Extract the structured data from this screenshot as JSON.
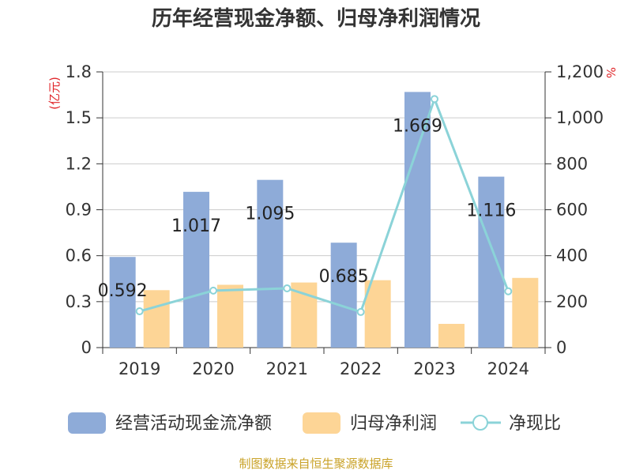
{
  "chart_data": {
    "type": "bar",
    "title": "历年经营现金净额、归母净利润情况",
    "categories": [
      "2019",
      "2020",
      "2021",
      "2022",
      "2023",
      "2024"
    ],
    "left_axis": {
      "unit": "(亿元)",
      "ylim": [
        0,
        1.8
      ],
      "ticks": [
        "0",
        "0.3",
        "0.6",
        "0.9",
        "1.2",
        "1.5",
        "1.8"
      ]
    },
    "right_axis": {
      "unit": "%",
      "ylim": [
        0,
        1200
      ],
      "ticks": [
        "0",
        "200",
        "400",
        "600",
        "800",
        "1,000",
        "1,200"
      ]
    },
    "series": [
      {
        "name": "经营活动现金流净额",
        "kind": "bar",
        "axis": "left",
        "color": "#8eabd8",
        "values": [
          0.592,
          1.017,
          1.095,
          0.685,
          1.669,
          1.116
        ],
        "labels": [
          "0.592",
          "1.017",
          "1.095",
          "0.685",
          "1.669",
          "1.116"
        ]
      },
      {
        "name": "归母净利润",
        "kind": "bar",
        "axis": "left",
        "color": "#fdd596",
        "values": [
          0.375,
          0.41,
          0.425,
          0.44,
          0.155,
          0.455
        ]
      },
      {
        "name": "净现比",
        "kind": "line",
        "axis": "right",
        "color": "#8bd3d8",
        "values": [
          158,
          248,
          258,
          155,
          1082,
          245
        ]
      }
    ],
    "grid": true,
    "legend_position": "bottom",
    "source": "制图数据来自恒生聚源数据库"
  }
}
